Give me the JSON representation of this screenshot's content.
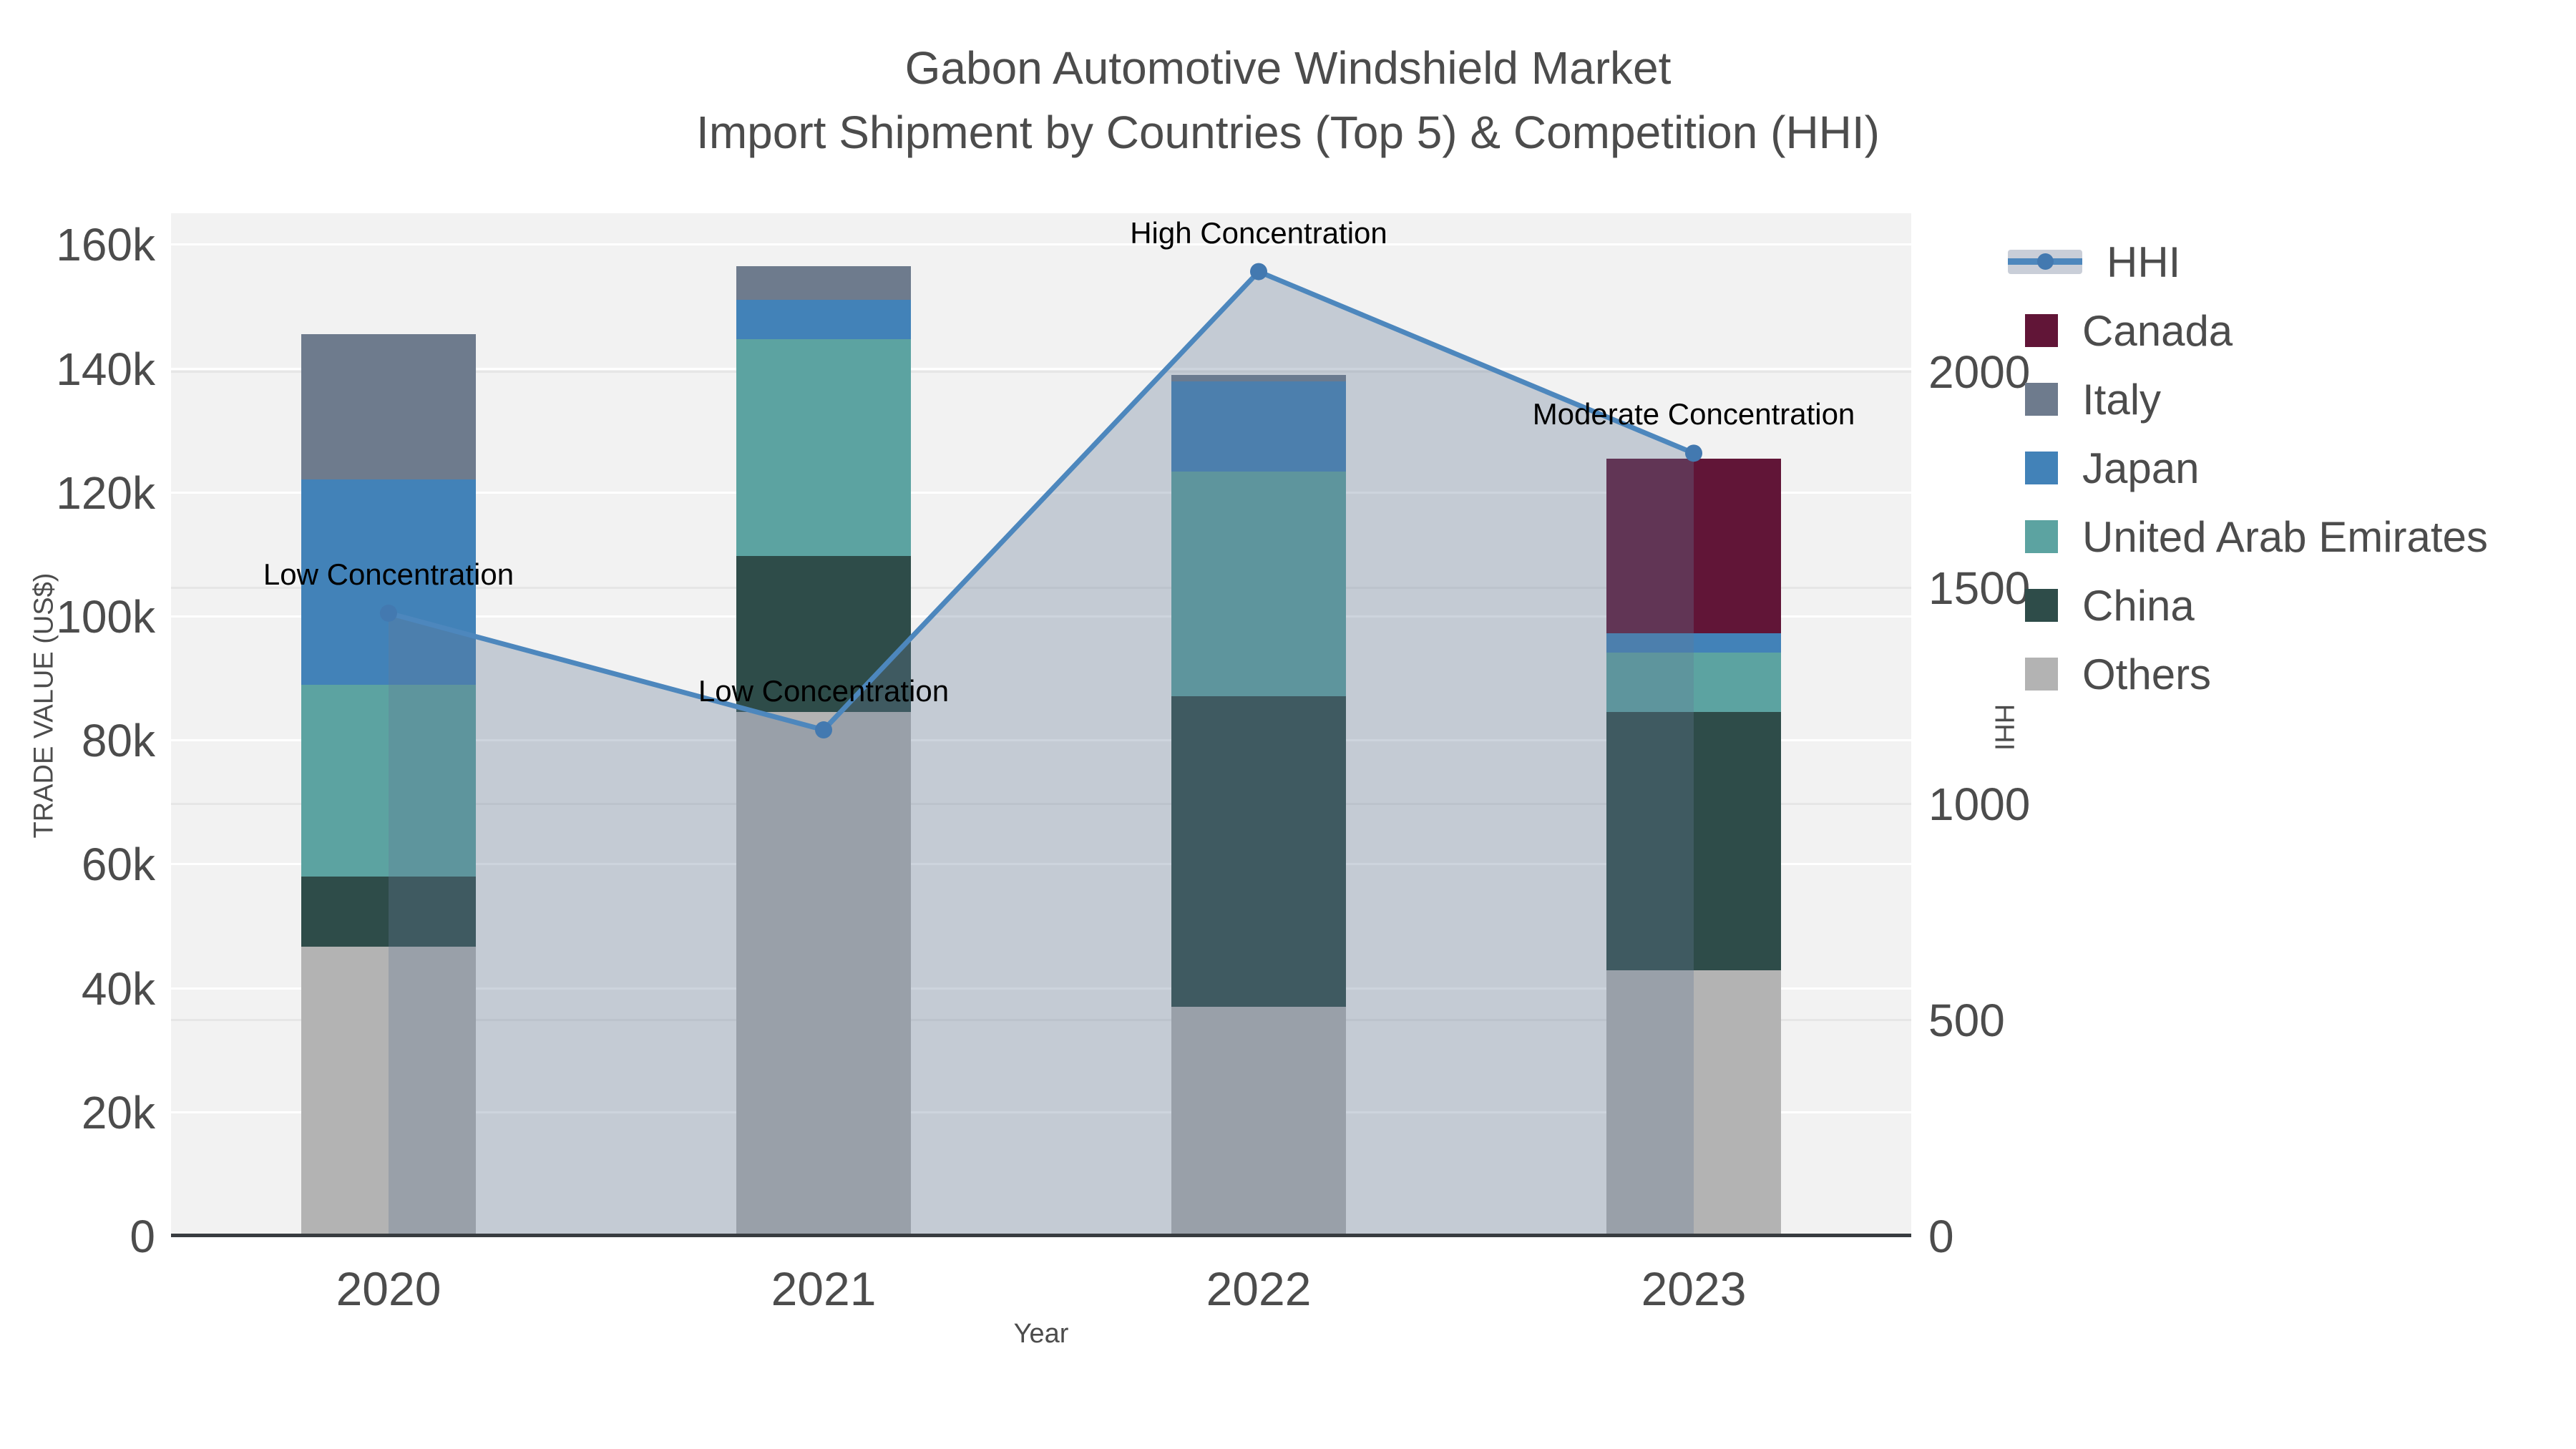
{
  "title": {
    "line1": "Gabon Automotive Windshield Market",
    "line2": "Import Shipment by Countries (Top 5) & Competition (HHI)"
  },
  "chart_data": {
    "type": "bar",
    "subtype": "stacked-bar-with-line",
    "categories": [
      "2020",
      "2021",
      "2022",
      "2023"
    ],
    "series": [
      {
        "name": "Others",
        "color": "#b3b3b3",
        "values": [
          46700,
          84500,
          36900,
          42800
        ]
      },
      {
        "name": "China",
        "color": "#2e4c49",
        "values": [
          11300,
          25200,
          50200,
          41700
        ]
      },
      {
        "name": "United Arab Emirates",
        "color": "#5ca3a1",
        "values": [
          30900,
          35000,
          36200,
          9600
        ]
      },
      {
        "name": "Japan",
        "color": "#4282b8",
        "values": [
          33100,
          6300,
          14600,
          3100
        ]
      },
      {
        "name": "Italy",
        "color": "#6e7b8d",
        "values": [
          23500,
          5400,
          1000,
          0
        ]
      },
      {
        "name": "Canada",
        "color": "#611537",
        "values": [
          0,
          0,
          0,
          28200
        ]
      }
    ],
    "line_series": {
      "name": "HHI",
      "color": "#4d87bd",
      "marker_color": "#4379b0",
      "area_fill": "rgba(100,120,150,0.32)",
      "values": [
        1440,
        1170,
        2230,
        1810
      ]
    },
    "annotations": [
      {
        "category": "2020",
        "text": "Low Concentration"
      },
      {
        "category": "2021",
        "text": "Low Concentration"
      },
      {
        "category": "2022",
        "text": "High Concentration"
      },
      {
        "category": "2023",
        "text": "Moderate Concentration"
      }
    ],
    "title": "Gabon Automotive Windshield Market Import Shipment by Countries (Top 5) & Competition (HHI)",
    "xlabel": "Year",
    "ylabel": "TRADE VALUE (US$)",
    "y2label": "HHI",
    "ylim": [
      0,
      165000
    ],
    "y2lim": [
      0,
      2365
    ],
    "yticks": [
      {
        "value": 0,
        "label": "0"
      },
      {
        "value": 20000,
        "label": "20k"
      },
      {
        "value": 40000,
        "label": "40k"
      },
      {
        "value": 60000,
        "label": "60k"
      },
      {
        "value": 80000,
        "label": "80k"
      },
      {
        "value": 100000,
        "label": "100k"
      },
      {
        "value": 120000,
        "label": "120k"
      },
      {
        "value": 140000,
        "label": "140k"
      },
      {
        "value": 160000,
        "label": "160k"
      }
    ],
    "y2ticks": [
      {
        "value": 0,
        "label": "0"
      },
      {
        "value": 500,
        "label": "500"
      },
      {
        "value": 1000,
        "label": "1000"
      },
      {
        "value": 1500,
        "label": "1500"
      },
      {
        "value": 2000,
        "label": "2000"
      }
    ],
    "grid": true,
    "legend_position": "right"
  },
  "legend": {
    "items": [
      {
        "label": "HHI",
        "type": "line",
        "color": "#4d87bd"
      },
      {
        "label": "Canada",
        "type": "square",
        "color": "#611537"
      },
      {
        "label": "Italy",
        "type": "square",
        "color": "#6e7b8d"
      },
      {
        "label": "Japan",
        "type": "square",
        "color": "#4282b8"
      },
      {
        "label": "United Arab Emirates",
        "type": "square",
        "color": "#5ca3a1"
      },
      {
        "label": "China",
        "type": "square",
        "color": "#2e4c49"
      },
      {
        "label": "Others",
        "type": "square",
        "color": "#b3b3b3"
      }
    ]
  }
}
